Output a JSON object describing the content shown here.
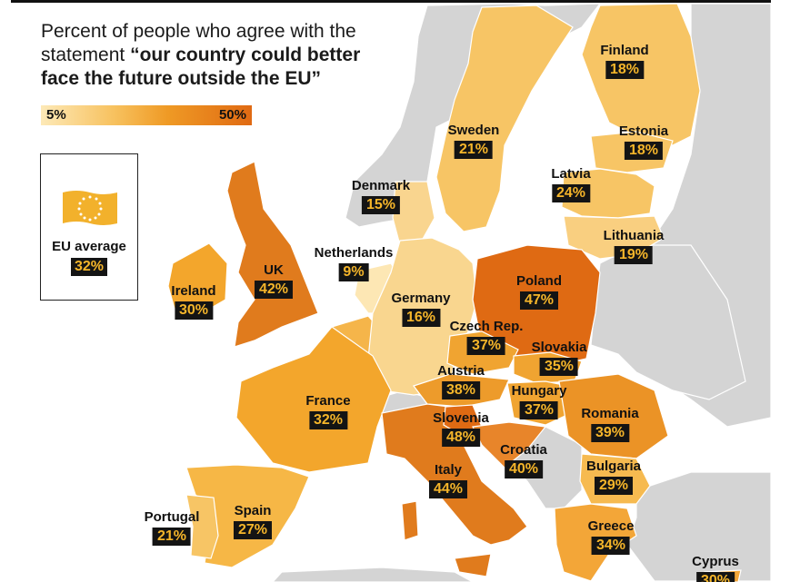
{
  "title": {
    "line1": "Percent of people who agree with the statement ",
    "emphasis": "“our country could better face the future outside the EU”"
  },
  "scale": {
    "min_label": "5%",
    "max_label": "50%"
  },
  "legend": {
    "label": "EU average",
    "value": "32%"
  },
  "colors": {
    "label_bg": "#141414",
    "label_text": "#f5b52a",
    "non_eu": "#d4d4d4",
    "scale_low": "#fde9b7",
    "scale_high": "#e06a13"
  },
  "countries": [
    {
      "id": "finland",
      "name": "Finland",
      "value": "18%"
    },
    {
      "id": "sweden",
      "name": "Sweden",
      "value": "21%"
    },
    {
      "id": "estonia",
      "name": "Estonia",
      "value": "18%"
    },
    {
      "id": "latvia",
      "name": "Latvia",
      "value": "24%"
    },
    {
      "id": "denmark",
      "name": "Denmark",
      "value": "15%"
    },
    {
      "id": "lithuania",
      "name": "Lithuania",
      "value": "19%"
    },
    {
      "id": "netherlands",
      "name": "Netherlands",
      "value": "9%"
    },
    {
      "id": "uk",
      "name": "UK",
      "value": "42%"
    },
    {
      "id": "ireland",
      "name": "Ireland",
      "value": "30%"
    },
    {
      "id": "poland",
      "name": "Poland",
      "value": "47%"
    },
    {
      "id": "germany",
      "name": "Germany",
      "value": "16%"
    },
    {
      "id": "czech",
      "name": "Czech Rep.",
      "value": "37%"
    },
    {
      "id": "slovakia",
      "name": "Slovakia",
      "value": "35%"
    },
    {
      "id": "austria",
      "name": "Austria",
      "value": "38%"
    },
    {
      "id": "france",
      "name": "France",
      "value": "32%"
    },
    {
      "id": "hungary",
      "name": "Hungary",
      "value": "37%"
    },
    {
      "id": "slovenia",
      "name": "Slovenia",
      "value": "48%"
    },
    {
      "id": "romania",
      "name": "Romania",
      "value": "39%"
    },
    {
      "id": "croatia",
      "name": "Croatia",
      "value": "40%"
    },
    {
      "id": "italy",
      "name": "Italy",
      "value": "44%"
    },
    {
      "id": "bulgaria",
      "name": "Bulgaria",
      "value": "29%"
    },
    {
      "id": "greece",
      "name": "Greece",
      "value": "34%"
    },
    {
      "id": "spain",
      "name": "Spain",
      "value": "27%"
    },
    {
      "id": "portugal",
      "name": "Portugal",
      "value": "21%"
    },
    {
      "id": "cyprus",
      "name": "Cyprus",
      "value": "30%"
    }
  ]
}
